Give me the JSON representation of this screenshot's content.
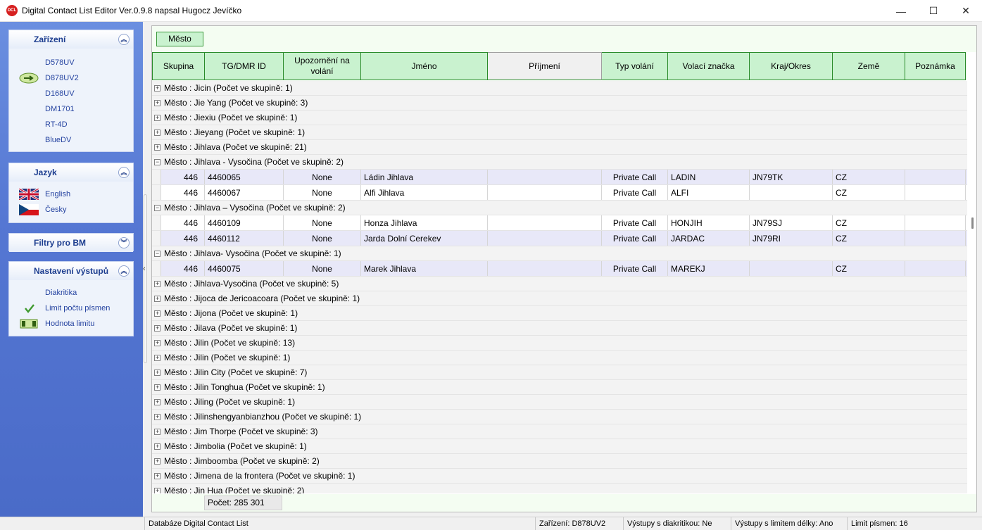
{
  "window": {
    "title": "Digital Contact List Editor Ver.0.9.8 napsal Hugocz Jevíčko",
    "icon_label": "DCL",
    "minimize": "—",
    "maximize": "☐",
    "close": "✕"
  },
  "sidebar": {
    "panels": [
      {
        "title": "Zařízení",
        "chevron": "︽",
        "items": [
          {
            "label": "D578UV",
            "icon": ""
          },
          {
            "label": "D878UV2",
            "icon": "arrow-right-icon"
          },
          {
            "label": "D168UV",
            "icon": ""
          },
          {
            "label": "DM1701",
            "icon": ""
          },
          {
            "label": "RT-4D",
            "icon": ""
          },
          {
            "label": "BlueDV",
            "icon": ""
          }
        ]
      },
      {
        "title": "Jazyk",
        "chevron": "︽",
        "items": [
          {
            "label": "English",
            "icon": "uk-flag-icon"
          },
          {
            "label": "Česky",
            "icon": "czech-flag-icon"
          }
        ]
      },
      {
        "title": "Filtry pro BM",
        "chevron": "︾",
        "items": []
      },
      {
        "title": "Nastavení výstupů",
        "chevron": "︽",
        "items": [
          {
            "label": "Diakritika",
            "icon": ""
          },
          {
            "label": "Limit počtu písmen",
            "icon": "checkmark-icon"
          },
          {
            "label": "Hodnota limitu",
            "icon": "slider-icon"
          }
        ]
      }
    ]
  },
  "grid": {
    "group_chip": "Město",
    "columns": [
      "Skupina",
      "TG/DMR ID",
      "Upozornění na volání",
      "Jméno",
      "Příjmení",
      "Typ volání",
      "Volací značka",
      "Kraj/Okres",
      "Země",
      "Poznámka"
    ],
    "rows": [
      {
        "kind": "group",
        "label": "Město : Jicin (Počet ve skupině:   1)",
        "expanded": false
      },
      {
        "kind": "group",
        "label": "Město : Jie Yang (Počet ve skupině:   3)",
        "expanded": false
      },
      {
        "kind": "group",
        "label": "Město : Jiexiu (Počet ve skupině:   1)",
        "expanded": false
      },
      {
        "kind": "group",
        "label": "Město : Jieyang (Počet ve skupině:   1)",
        "expanded": false
      },
      {
        "kind": "group",
        "label": "Město : Jihlava (Počet ve skupině:   21)",
        "expanded": false
      },
      {
        "kind": "group",
        "label": "Město : Jihlava - Vysočina (Počet ve skupině:   2)",
        "expanded": true
      },
      {
        "kind": "data",
        "style": "sel",
        "cells": [
          "446",
          "4460065",
          "None",
          "Ládin Jihlava",
          "",
          "Private Call",
          "LADIN",
          "JN79TK",
          "CZ",
          ""
        ]
      },
      {
        "kind": "data",
        "style": "plain",
        "cells": [
          "446",
          "4460067",
          "None",
          "Alfi Jihlava",
          "",
          "Private Call",
          "ALFI",
          "",
          "CZ",
          ""
        ]
      },
      {
        "kind": "group",
        "label": "Město : Jihlava – Vysočina (Počet ve skupině:   2)",
        "expanded": true
      },
      {
        "kind": "data",
        "style": "plain",
        "cells": [
          "446",
          "4460109",
          "None",
          "Honza Jihlava",
          "",
          "Private Call",
          "HONJIH",
          "JN79SJ",
          "CZ",
          ""
        ]
      },
      {
        "kind": "data",
        "style": "sel",
        "cells": [
          "446",
          "4460112",
          "None",
          "Jarda Dolní Cerekev",
          "",
          "Private Call",
          "JARDAC",
          "JN79RI",
          "CZ",
          ""
        ]
      },
      {
        "kind": "group",
        "label": "Město : Jihlava- Vysočina (Počet ve skupině:   1)",
        "expanded": true
      },
      {
        "kind": "data",
        "style": "sel",
        "cells": [
          "446",
          "4460075",
          "None",
          "Marek Jihlava",
          "",
          "Private Call",
          "MAREKJ",
          "",
          "CZ",
          ""
        ]
      },
      {
        "kind": "group",
        "label": "Město : Jihlava-Vysočina (Počet ve skupině:   5)",
        "expanded": false
      },
      {
        "kind": "group",
        "label": "Město : Jijoca de Jericoacoara (Počet ve skupině:   1)",
        "expanded": false
      },
      {
        "kind": "group",
        "label": "Město : Jijona (Počet ve skupině:   1)",
        "expanded": false
      },
      {
        "kind": "group",
        "label": "Město : Jilava (Počet ve skupině:   1)",
        "expanded": false
      },
      {
        "kind": "group",
        "label": "Město : Jilin (Počet ve skupině:   13)",
        "expanded": false
      },
      {
        "kind": "group",
        "label": "Město : Jilin  (Počet ve skupině:   1)",
        "expanded": false
      },
      {
        "kind": "group",
        "label": "Město : Jilin City (Počet ve skupině:   7)",
        "expanded": false
      },
      {
        "kind": "group",
        "label": "Město : Jilin Tonghua (Počet ve skupině:   1)",
        "expanded": false
      },
      {
        "kind": "group",
        "label": "Město : Jiling (Počet ve skupině:   1)",
        "expanded": false
      },
      {
        "kind": "group",
        "label": "Město : Jilinshengyanbianzhou (Počet ve skupině:   1)",
        "expanded": false
      },
      {
        "kind": "group",
        "label": "Město : Jim Thorpe (Počet ve skupině:   3)",
        "expanded": false
      },
      {
        "kind": "group",
        "label": "Město : Jimbolia (Počet ve skupině:   1)",
        "expanded": false
      },
      {
        "kind": "group",
        "label": "Město : Jimboomba (Počet ve skupině:   2)",
        "expanded": false
      },
      {
        "kind": "group",
        "label": "Město : Jimena de la frontera (Počet ve skupině:   1)",
        "expanded": false
      },
      {
        "kind": "group",
        "label": "Město : Jin Hua (Počet ve skupině:   2)",
        "expanded": false
      }
    ],
    "footer_count": "Počet:  285 301"
  },
  "statusbar": {
    "database": "Databáze Digital Contact List",
    "device": "Zařízení: D878UV2",
    "diacritics": "Výstupy s diakritikou: Ne",
    "length_limit": "Výstupy s limitem délky: Ano",
    "letter_limit": "Limit písmen: 16"
  }
}
